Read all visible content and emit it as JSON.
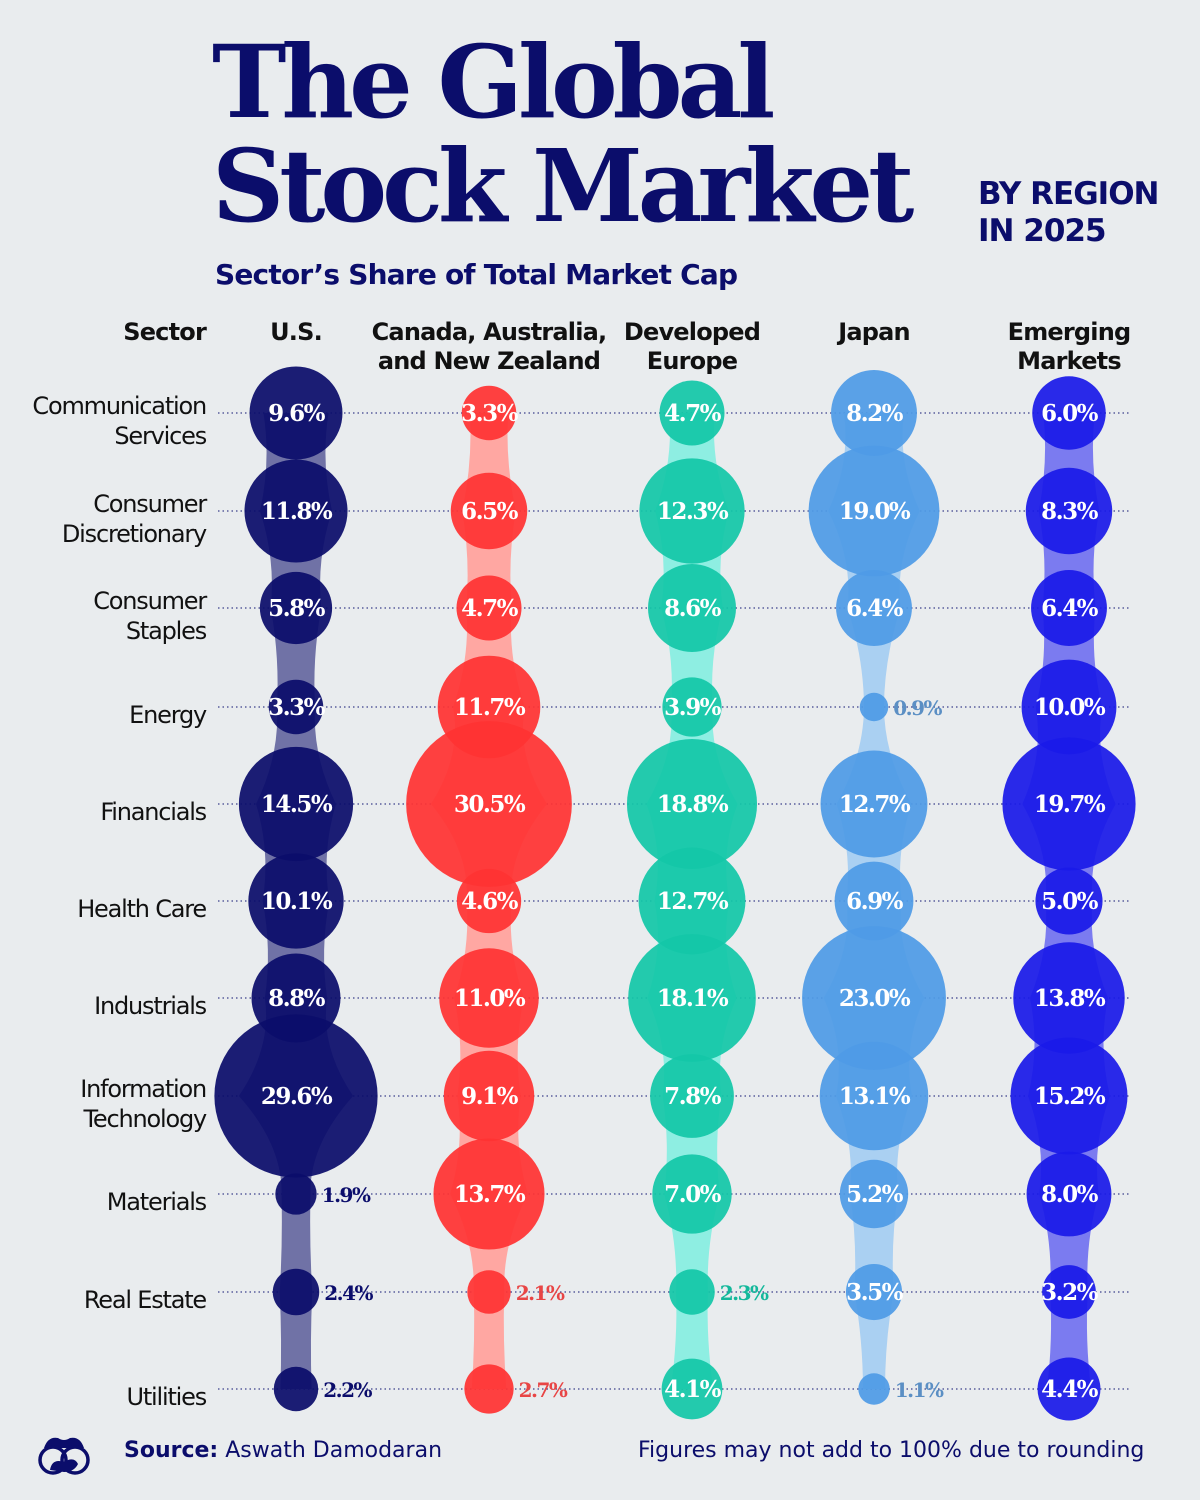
{
  "title_line1": "The Global",
  "title_line2": "Stock Market",
  "title_side_line1": "BY REGION",
  "title_side_line2": "IN 2025",
  "subtitle": "Sector’s Share of Total Market Cap",
  "chart_data": {
    "type": "bubble-matrix",
    "row_header": "Sector",
    "sectors": [
      "Communication\nServices",
      "Consumer\nDiscretionary",
      "Consumer\nStaples",
      "Energy",
      "Financials",
      "Health Care",
      "Industrials",
      "Information\nTechnology",
      "Materials",
      "Real Estate",
      "Utilities"
    ],
    "series": [
      {
        "name": "U.S.",
        "color": "#0b0d6b",
        "light": "#7072a6",
        "label_color": "#0b0d6b",
        "values": [
          9.6,
          11.8,
          5.8,
          3.3,
          14.5,
          10.1,
          8.8,
          29.6,
          1.9,
          2.4,
          2.2
        ]
      },
      {
        "name": "Canada, Australia,\nand New Zealand",
        "color": "#ff3333",
        "light": "#ffa7a2",
        "label_color": "#e84545",
        "values": [
          3.3,
          6.5,
          4.7,
          11.7,
          30.5,
          4.6,
          11.0,
          9.1,
          13.7,
          2.1,
          2.7
        ]
      },
      {
        "name": "Developed\nEurope",
        "color": "#13c7a8",
        "light": "#8eeee2",
        "label_color": "#13b89b",
        "values": [
          4.7,
          12.3,
          8.6,
          3.9,
          18.8,
          12.7,
          18.1,
          7.8,
          7.0,
          2.3,
          4.1
        ]
      },
      {
        "name": "Japan",
        "color": "#4f9be6",
        "light": "#aad0f2",
        "label_color": "#5b8fc4",
        "values": [
          8.2,
          19.0,
          6.4,
          0.9,
          12.7,
          6.9,
          23.0,
          13.1,
          5.2,
          3.5,
          1.1
        ]
      },
      {
        "name": "Emerging\nMarkets",
        "color": "#1a1ae8",
        "light": "#7b7bf0",
        "label_color": "#1a1ae8",
        "values": [
          6.0,
          8.3,
          6.4,
          10.0,
          19.7,
          5.0,
          13.8,
          15.2,
          8.0,
          3.2,
          4.4
        ]
      }
    ],
    "unit": "%"
  },
  "footer": {
    "source_label": "Source:",
    "source_value": "Aswath Damodaran",
    "note": "Figures may not add to 100% due to rounding"
  },
  "logo_icon": "binoculars-logo-icon"
}
